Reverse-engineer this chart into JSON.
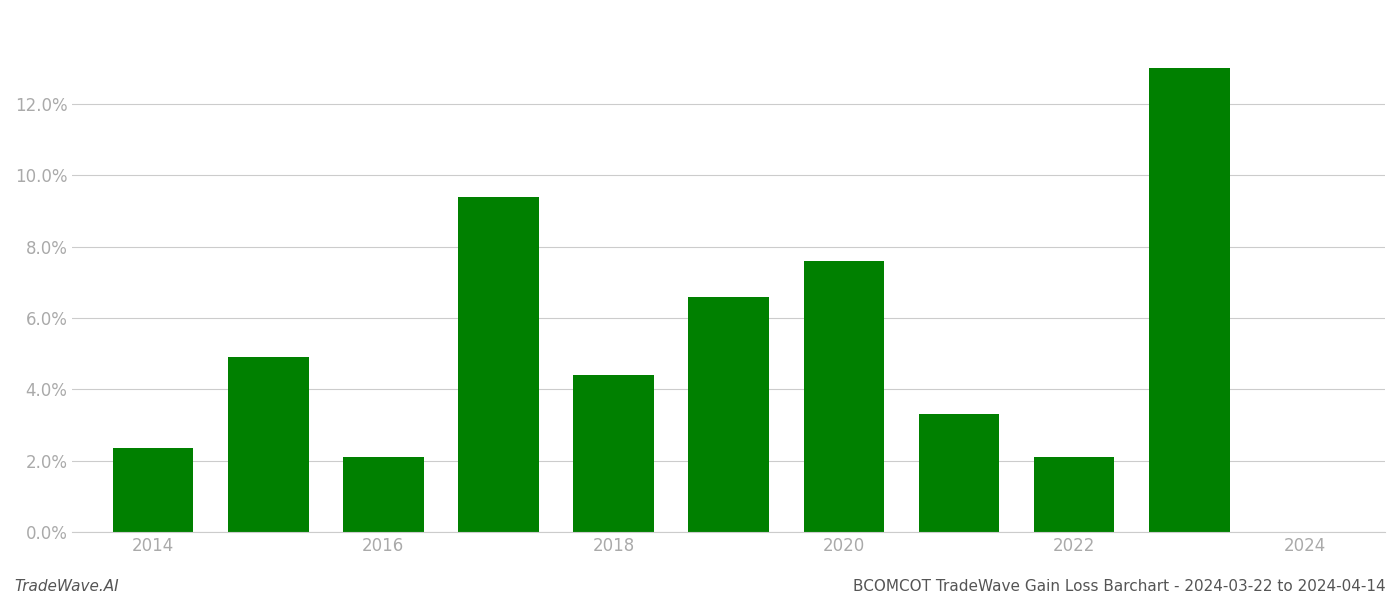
{
  "years": [
    2014,
    2015,
    2016,
    2017,
    2018,
    2019,
    2020,
    2021,
    2022,
    2023
  ],
  "values": [
    0.0235,
    0.049,
    0.021,
    0.094,
    0.044,
    0.066,
    0.076,
    0.033,
    0.021,
    0.13
  ],
  "bar_color": "#008000",
  "background_color": "#ffffff",
  "title": "BCOMCOT TradeWave Gain Loss Barchart - 2024-03-22 to 2024-04-14",
  "watermark": "TradeWave.AI",
  "ylim": [
    0,
    0.145
  ],
  "yticks": [
    0.0,
    0.02,
    0.04,
    0.06,
    0.08,
    0.1,
    0.12
  ],
  "xticks": [
    2014,
    2016,
    2018,
    2020,
    2022,
    2024
  ],
  "xlim": [
    2013.3,
    2024.7
  ],
  "grid_color": "#cccccc",
  "tick_label_color": "#aaaaaa",
  "title_color": "#555555",
  "watermark_color": "#555555",
  "title_fontsize": 11,
  "watermark_fontsize": 11,
  "tick_fontsize": 12,
  "bar_width": 0.7
}
